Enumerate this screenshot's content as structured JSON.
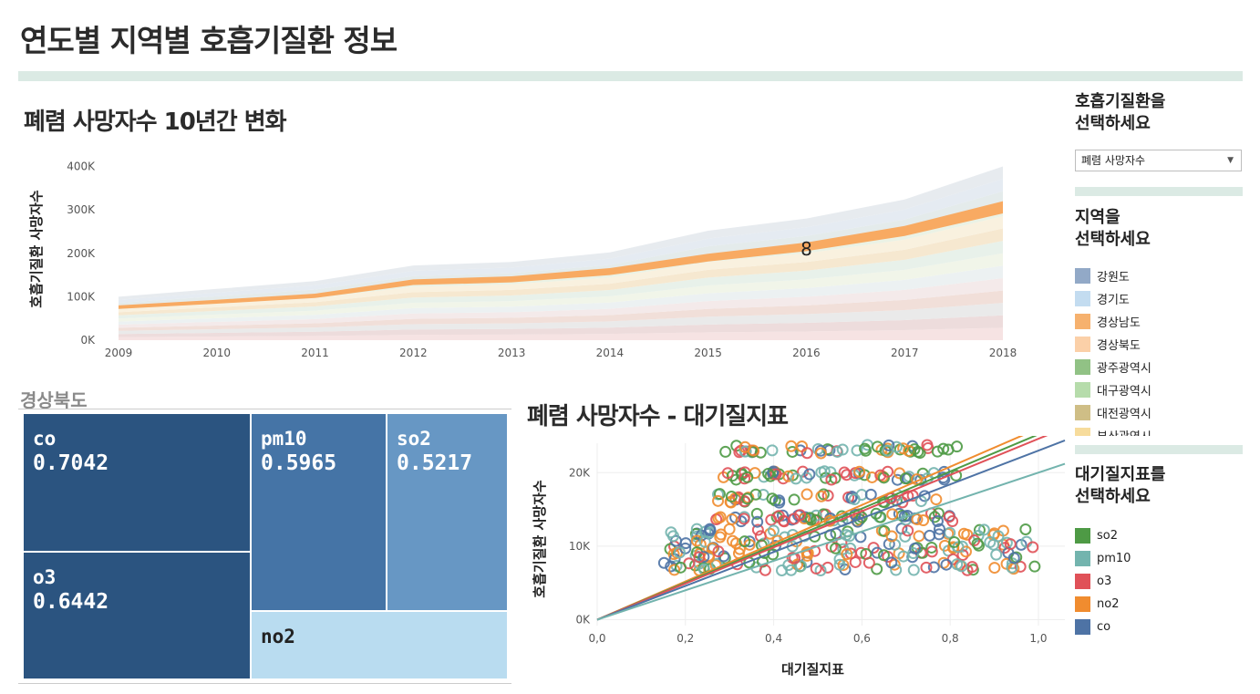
{
  "page": {
    "title": "연도별 지역별 호흡기질환 정보",
    "area_title": "폐렴 사망자수 10년간 변화",
    "treemap_title": "경상북도",
    "scatter_title": "폐렴 사망자수 - 대기질지표"
  },
  "sidebar": {
    "disease_heading": "호흡기질환을\n선택하세요",
    "disease_selected": "폐렴 사망자수",
    "region_heading": "지역을\n선택하세요",
    "regions": [
      {
        "label": "강원도",
        "color": "#92a9c7"
      },
      {
        "label": "경기도",
        "color": "#c3dcf0"
      },
      {
        "label": "경상남도",
        "color": "#f6b16e"
      },
      {
        "label": "경상북도",
        "color": "#fbd0a8"
      },
      {
        "label": "광주광역시",
        "color": "#91c285"
      },
      {
        "label": "대구광역시",
        "color": "#b6dcab"
      },
      {
        "label": "대전광역시",
        "color": "#cfbe86"
      },
      {
        "label": "부산광역시",
        "color": "#f7dc9c"
      }
    ],
    "pollutant_heading": "대기질지표를\n선택하세요",
    "pollutants": [
      {
        "label": "so2",
        "color": "#4e9a45"
      },
      {
        "label": "pm10",
        "color": "#73b4ae"
      },
      {
        "label": "o3",
        "color": "#e05158"
      },
      {
        "label": "no2",
        "color": "#f08c2f"
      },
      {
        "label": "co",
        "color": "#4e73a5"
      }
    ]
  },
  "chart_data": [
    {
      "type": "area",
      "title": "폐렴 사망자수 10년간 변화",
      "ylabel": "호흡기질환 사망자수",
      "x": [
        "2009",
        "2010",
        "2011",
        "2012",
        "2013",
        "2014",
        "2015",
        "2016",
        "2017",
        "2018"
      ],
      "y_ticks": [
        "0K",
        "100K",
        "200K",
        "300K",
        "400K"
      ],
      "ylim": [
        0,
        420000
      ],
      "highlight_series": "경상남도",
      "annotation": {
        "x": "2016",
        "text": "8"
      },
      "totals": [
        100000,
        118000,
        136000,
        172000,
        180000,
        202000,
        252000,
        280000,
        324000,
        400000
      ],
      "highlight_top": [
        80000,
        93000,
        107000,
        140000,
        147000,
        166000,
        199000,
        225000,
        263000,
        320000
      ],
      "highlight_bottom": [
        72000,
        84000,
        97000,
        127000,
        133000,
        150000,
        181000,
        205000,
        240000,
        292000
      ],
      "highlight_color": "#f8aa62"
    },
    {
      "type": "treemap",
      "title": "경상북도",
      "items": [
        {
          "name": "co",
          "value": "0.7042",
          "color": "#2b5480"
        },
        {
          "name": "o3",
          "value": "0.6442",
          "color": "#2b5480"
        },
        {
          "name": "pm10",
          "value": "0.5965",
          "color": "#4574a6"
        },
        {
          "name": "so2",
          "value": "0.5217",
          "color": "#6797c4"
        },
        {
          "name": "no2",
          "value": "",
          "color": "#b9dcf0"
        }
      ]
    },
    {
      "type": "scatter",
      "title": "폐렴 사망자수 - 대기질지표",
      "xlabel": "대기질지표",
      "ylabel": "호흡기질환 사망자수",
      "x_ticks": [
        "0,0",
        "0,2",
        "0,4",
        "0,6",
        "0,8",
        "1,0"
      ],
      "y_ticks": [
        "0K",
        "10K",
        "20K"
      ],
      "xlim": [
        0,
        1.06
      ],
      "ylim": [
        -800,
        24000
      ],
      "trend_lines": [
        {
          "series": "no2",
          "slope": 26000,
          "color": "#f08c2f"
        },
        {
          "series": "so2",
          "slope": 25200,
          "color": "#4e9a45"
        },
        {
          "series": "o3",
          "slope": 24600,
          "color": "#e05158"
        },
        {
          "series": "co",
          "slope": 23000,
          "color": "#4e73a5"
        },
        {
          "series": "pm10",
          "slope": 20000,
          "color": "#73b4ae"
        }
      ],
      "point_rows_k": [
        23.2,
        19.6,
        16.5,
        13.9,
        11.8,
        10.2,
        8.8,
        7.3
      ],
      "point_count": 420
    }
  ]
}
